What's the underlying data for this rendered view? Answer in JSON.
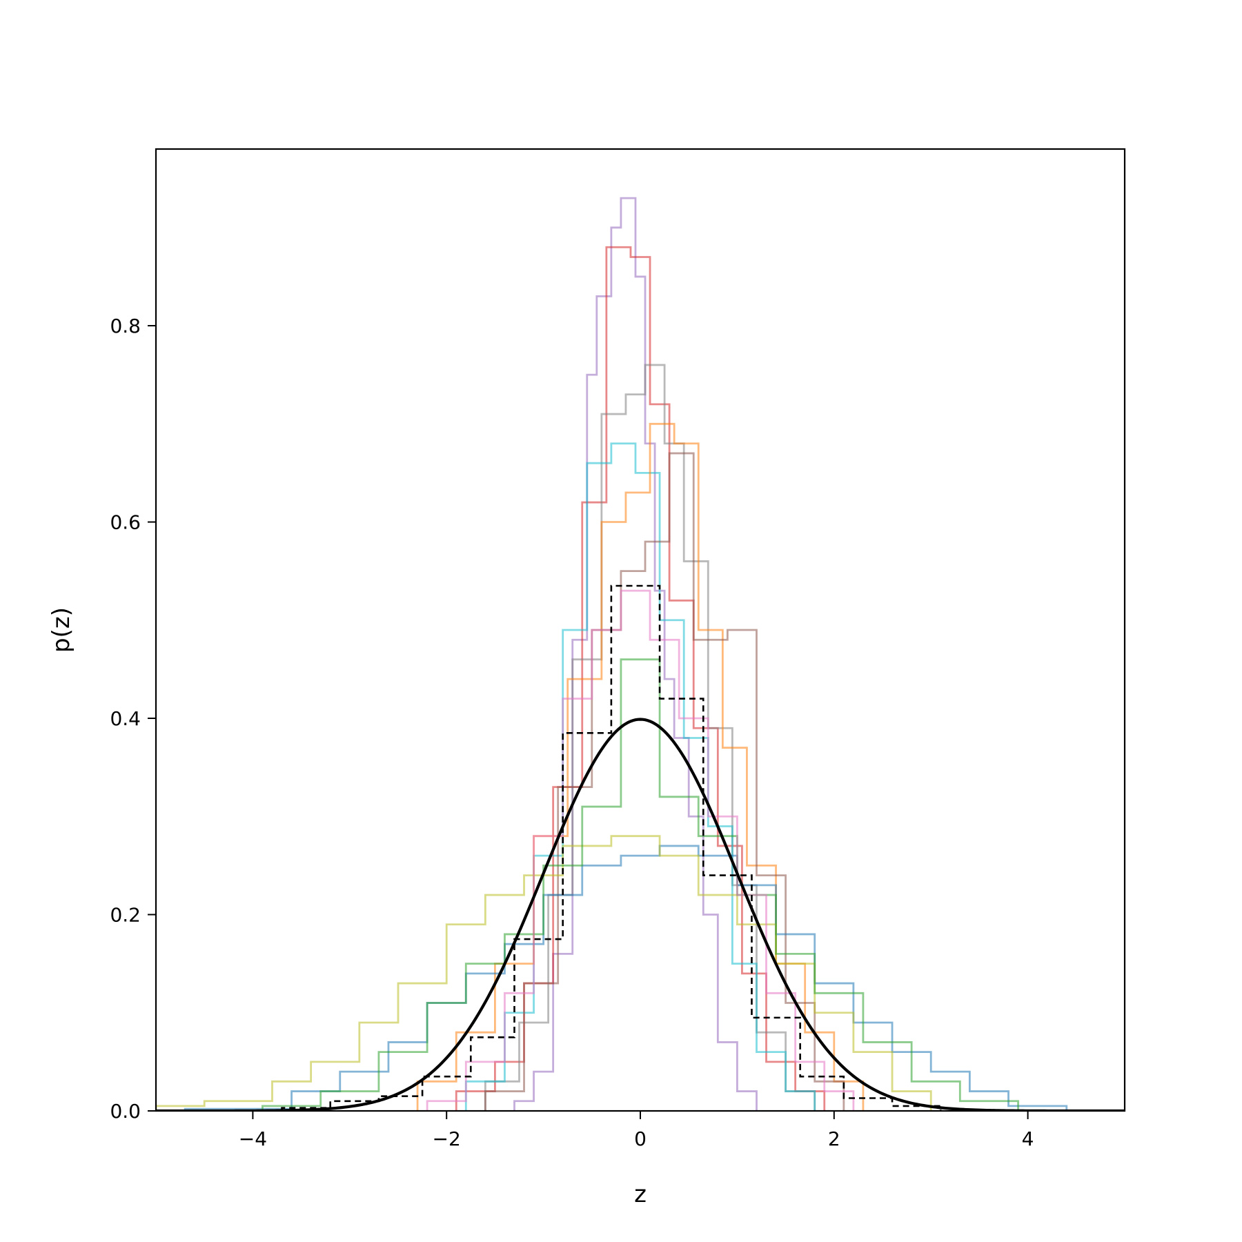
{
  "chart_data": {
    "type": "line",
    "title": "",
    "xlabel": "z",
    "ylabel": "p(z)",
    "xlim": [
      -5,
      5
    ],
    "ylim": [
      0,
      0.98
    ],
    "xticks": [
      -4,
      -2,
      0,
      2,
      4
    ],
    "xtick_labels": [
      "−4",
      "−2",
      "0",
      "2",
      "4"
    ],
    "yticks": [
      0.0,
      0.2,
      0.4,
      0.6,
      0.8
    ],
    "ytick_labels": [
      "0.0",
      "0.2",
      "0.4",
      "0.6",
      "0.8"
    ],
    "grid": false,
    "legend": "none",
    "series": [
      {
        "color": "#9467bd",
        "style": "step",
        "opacity": 0.55,
        "edges": [
          -1.3,
          -1.1,
          -0.9,
          -0.7,
          -0.55,
          -0.45,
          -0.3,
          -0.2,
          -0.05,
          0.05,
          0.15,
          0.25,
          0.35,
          0.5,
          0.65,
          0.8,
          1.0,
          1.2
        ],
        "values": [
          0.01,
          0.04,
          0.16,
          0.48,
          0.75,
          0.83,
          0.9,
          0.93,
          0.85,
          0.68,
          0.53,
          0.44,
          0.38,
          0.3,
          0.2,
          0.07,
          0.02
        ]
      },
      {
        "color": "#d62728",
        "style": "step",
        "opacity": 0.55,
        "edges": [
          -1.9,
          -1.5,
          -1.2,
          -0.9,
          -0.6,
          -0.35,
          -0.1,
          0.1,
          0.3,
          0.55,
          0.8,
          1.05,
          1.3,
          1.6,
          1.9
        ],
        "values": [
          0.02,
          0.05,
          0.13,
          0.33,
          0.62,
          0.88,
          0.87,
          0.72,
          0.52,
          0.39,
          0.27,
          0.14,
          0.05,
          0.02
        ]
      },
      {
        "color": "#7f7f7f",
        "style": "step",
        "opacity": 0.55,
        "edges": [
          -1.6,
          -1.25,
          -0.95,
          -0.7,
          -0.4,
          -0.15,
          0.05,
          0.25,
          0.45,
          0.7,
          0.95,
          1.2,
          1.5,
          1.8
        ],
        "values": [
          0.03,
          0.09,
          0.22,
          0.46,
          0.71,
          0.73,
          0.76,
          0.68,
          0.56,
          0.39,
          0.23,
          0.08,
          0.02
        ]
      },
      {
        "color": "#17becf",
        "style": "step",
        "opacity": 0.55,
        "edges": [
          -1.8,
          -1.4,
          -1.1,
          -0.8,
          -0.55,
          -0.3,
          -0.05,
          0.2,
          0.45,
          0.7,
          0.95,
          1.2,
          1.5,
          1.8
        ],
        "values": [
          0.03,
          0.1,
          0.26,
          0.49,
          0.66,
          0.68,
          0.65,
          0.5,
          0.38,
          0.29,
          0.15,
          0.06,
          0.02
        ]
      },
      {
        "color": "#ff7f0e",
        "style": "step",
        "opacity": 0.55,
        "edges": [
          -2.3,
          -1.9,
          -1.5,
          -1.1,
          -0.75,
          -0.4,
          -0.15,
          0.1,
          0.35,
          0.6,
          0.85,
          1.1,
          1.4,
          1.7,
          2.0,
          2.3
        ],
        "values": [
          0.03,
          0.08,
          0.15,
          0.28,
          0.44,
          0.6,
          0.63,
          0.7,
          0.68,
          0.49,
          0.37,
          0.25,
          0.15,
          0.08,
          0.03
        ]
      },
      {
        "color": "#8c564b",
        "style": "step",
        "opacity": 0.55,
        "edges": [
          -1.6,
          -1.2,
          -0.85,
          -0.5,
          -0.2,
          0.05,
          0.3,
          0.55,
          0.9,
          1.2,
          1.5,
          1.8,
          2.1
        ],
        "values": [
          0.02,
          0.13,
          0.33,
          0.49,
          0.55,
          0.58,
          0.67,
          0.48,
          0.49,
          0.24,
          0.11,
          0.03
        ]
      },
      {
        "color": "#1f77b4",
        "style": "step",
        "opacity": 0.55,
        "edges": [
          -4.7,
          -3.6,
          -3.1,
          -2.6,
          -2.2,
          -1.8,
          -1.4,
          -1.0,
          -0.6,
          -0.2,
          0.2,
          0.6,
          1.0,
          1.4,
          1.8,
          2.2,
          2.6,
          3.0,
          3.4,
          3.8,
          4.4
        ],
        "values": [
          0.002,
          0.02,
          0.04,
          0.07,
          0.11,
          0.14,
          0.17,
          0.22,
          0.25,
          0.26,
          0.27,
          0.26,
          0.23,
          0.18,
          0.13,
          0.09,
          0.06,
          0.04,
          0.02,
          0.005
        ]
      },
      {
        "color": "#bcbd22",
        "style": "step",
        "opacity": 0.55,
        "edges": [
          -5.0,
          -4.5,
          -3.8,
          -3.4,
          -2.9,
          -2.5,
          -2.0,
          -1.6,
          -1.2,
          -0.8,
          -0.3,
          0.2,
          0.6,
          1.0,
          1.4,
          1.8,
          2.2,
          2.6,
          3.0
        ],
        "values": [
          0.005,
          0.01,
          0.03,
          0.05,
          0.09,
          0.13,
          0.19,
          0.22,
          0.24,
          0.27,
          0.28,
          0.26,
          0.22,
          0.19,
          0.15,
          0.1,
          0.06,
          0.02
        ]
      },
      {
        "color": "#2ca02c",
        "style": "step",
        "opacity": 0.55,
        "edges": [
          -3.9,
          -3.3,
          -2.7,
          -2.2,
          -1.8,
          -1.4,
          -1.0,
          -0.6,
          -0.2,
          0.2,
          0.6,
          1.0,
          1.4,
          1.8,
          2.3,
          2.8,
          3.3,
          3.9
        ],
        "values": [
          0.005,
          0.02,
          0.06,
          0.11,
          0.15,
          0.18,
          0.25,
          0.31,
          0.46,
          0.32,
          0.28,
          0.22,
          0.16,
          0.12,
          0.07,
          0.03,
          0.01
        ]
      },
      {
        "color": "#e377c2",
        "style": "step",
        "opacity": 0.55,
        "edges": [
          -2.2,
          -1.8,
          -1.4,
          -1.1,
          -0.8,
          -0.5,
          -0.2,
          0.1,
          0.4,
          0.7,
          1.0,
          1.3,
          1.6,
          1.9,
          2.2
        ],
        "values": [
          0.01,
          0.05,
          0.12,
          0.28,
          0.42,
          0.49,
          0.53,
          0.48,
          0.4,
          0.3,
          0.22,
          0.12,
          0.05,
          0.02
        ]
      },
      {
        "color": "#000000",
        "style": "dashed-step",
        "opacity": 1.0,
        "edges": [
          -3.7,
          -3.2,
          -2.7,
          -2.25,
          -1.75,
          -1.3,
          -0.8,
          -0.3,
          0.2,
          0.65,
          1.15,
          1.65,
          2.1,
          2.6,
          3.1
        ],
        "values": [
          0.003,
          0.01,
          0.015,
          0.035,
          0.075,
          0.175,
          0.385,
          0.535,
          0.42,
          0.24,
          0.095,
          0.035,
          0.013,
          0.005
        ]
      },
      {
        "name": "",
        "color": "#000000",
        "style": "curve",
        "opacity": 1.0,
        "function": "normal_pdf",
        "mean": 0,
        "std": 1
      }
    ]
  }
}
